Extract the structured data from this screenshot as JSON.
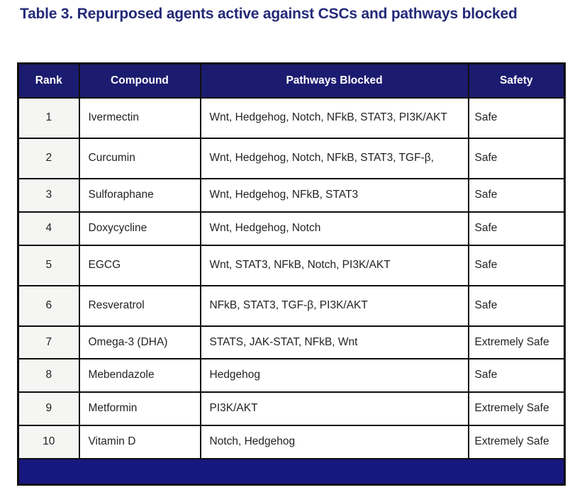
{
  "title": "Table 3. Repurposed agents active against CSCs and pathways blocked",
  "colors": {
    "title_navy": "#242a78",
    "header_bg": "#1b1b70",
    "footer_bg": "#171780",
    "border": "#0e0e0e",
    "rank_cell_bg": "#f5f5f4",
    "cell_text": "#232323"
  },
  "table": {
    "headers": [
      "Rank",
      "Compound",
      "Pathways Blocked",
      "Safety"
    ],
    "rows": [
      {
        "rank": "1",
        "compound": "Ivermectin",
        "pathways": "Wnt, Hedgehog, Notch, NFkB, STAT3, PI3K/AKT",
        "safety": "Safe"
      },
      {
        "rank": "2",
        "compound": "Curcumin",
        "pathways": "Wnt, Hedgehog, Notch, NFkB, STAT3, TGF-β,",
        "safety": "Safe"
      },
      {
        "rank": "3",
        "compound": "Sulforaphane",
        "pathways": "Wnt, Hedgehog, NFkB, STAT3",
        "safety": "Safe"
      },
      {
        "rank": "4",
        "compound": "Doxycycline",
        "pathways": "Wnt, Hedgehog, Notch",
        "safety": "Safe"
      },
      {
        "rank": "5",
        "compound": "EGCG",
        "pathways": "Wnt, STAT3, NFkB, Notch, PI3K/AKT",
        "safety": "Safe"
      },
      {
        "rank": "6",
        "compound": "Resveratrol",
        "pathways": "NFkB, STAT3, TGF-β, PI3K/AKT",
        "safety": "Safe"
      },
      {
        "rank": "7",
        "compound": "Omega-3 (DHA)",
        "pathways": "STATS, JAK-STAT, NFkB, Wnt",
        "safety": "Extremely Safe"
      },
      {
        "rank": "8",
        "compound": "Mebendazole",
        "pathways": "Hedgehog",
        "safety": "Safe"
      },
      {
        "rank": "9",
        "compound": "Metformin",
        "pathways": "PI3K/AKT",
        "safety": "Extremely Safe"
      },
      {
        "rank": "10",
        "compound": "Vitamin D",
        "pathways": "Notch, Hedgehog",
        "safety": "Extremely Safe"
      }
    ]
  }
}
